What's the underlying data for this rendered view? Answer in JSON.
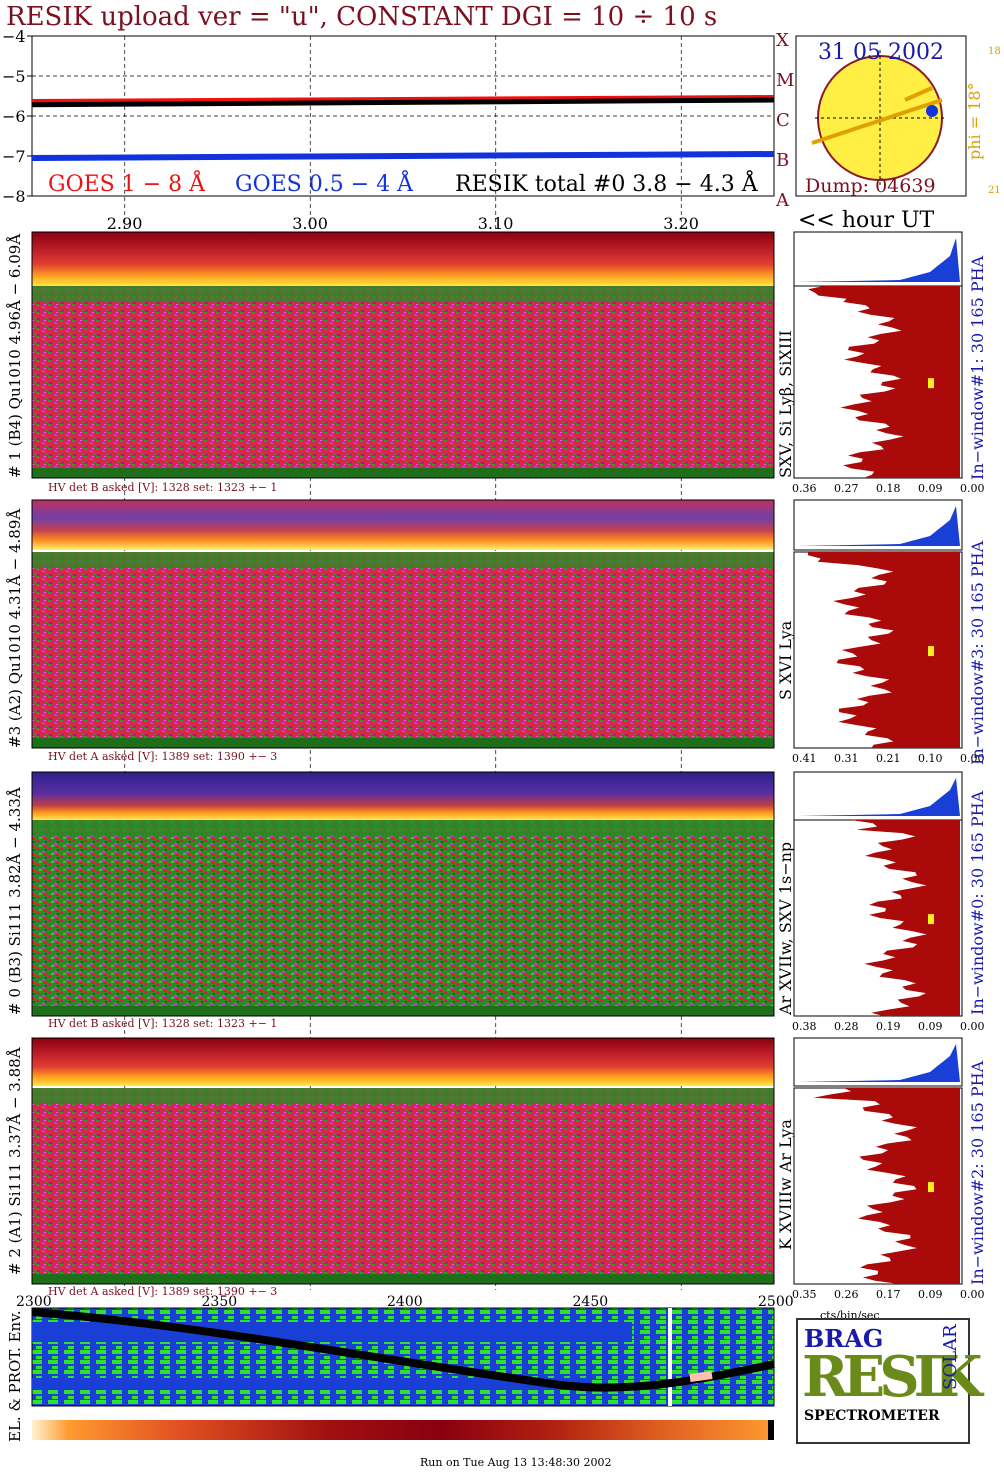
{
  "header": {
    "title": "RESIK upload ver = \"u\", CONSTANT  DGI =  10 ÷  10 s",
    "goes_label_1": "GOES 1 − 8 Å",
    "goes_label_2": "GOES 0.5 − 4 Å",
    "resik_total_label": "RESIK total #0  3.8 − 4.3 Å",
    "class_letters": [
      "A",
      "B",
      "C",
      "M",
      "X"
    ]
  },
  "colors": {
    "title": "#7a1020",
    "goes_long": "#ee1111",
    "goes_short": "#1133dd",
    "resik_total": "#000000",
    "sun": "#ffee44",
    "sun_ring": "#8a1a2a",
    "phi": "#e0a000",
    "histogram": "#aa0a0a",
    "pha": "#1a3fd6",
    "navy": "#1a1aaa"
  },
  "sun_panel": {
    "date": "31 05 2002",
    "dump": "Dump: 04639",
    "phi_label": "phi =  18°",
    "phi_scale": [
      "18",
      "21"
    ]
  },
  "axis": {
    "hour_ticks": [
      "2.90",
      "3.00",
      "3.10",
      "3.20"
    ],
    "hour_label": "<< hour UT",
    "bottom_ticks": [
      "2300",
      "2350",
      "2400",
      "2450",
      "2500"
    ],
    "hist_unit": "cts/bin/sec",
    "run_info": "Run on Tue Aug 13 13:48:30 2002"
  },
  "detectors": [
    {
      "side_label": "# 1 (B4) Qu1010 4.96Å − 6.09Å",
      "line_label": "SXV, Si Lyβ, SiXIII",
      "hv": "HV det B asked [V]:  1328 set:  1323 +−    1",
      "window": "In−window#1:   30 165 PHA",
      "hist_ticks": [
        "0.36",
        "0.27",
        "0.18",
        "0.09",
        "0.00"
      ]
    },
    {
      "side_label": "#3 (A2) Qu1010  4.31Å − 4.89Å",
      "line_label": "S XVI Lya",
      "hv": "HV det A asked [V]:  1389 set:  1390 +−     3",
      "window": "In−window#3:   30 165 PHA",
      "hist_ticks": [
        "0.41",
        "0.31",
        "0.21",
        "0.10",
        "0.00"
      ]
    },
    {
      "side_label": "# 0 (B3) Si111  3.82Å − 4.33Å",
      "line_label": "Ar XVIIw,  SXV 1s−np",
      "hv": "HV det B asked [V]:  1328 set:  1323 +−    1",
      "window": "In−window#0:   30 165 PHA",
      "hist_ticks": [
        "0.38",
        "0.28",
        "0.19",
        "0.09",
        "0.00"
      ]
    },
    {
      "side_label": "# 2 (A1) Si111  3.37Å − 3.88Å",
      "line_label": "K XVIIIw  Ar Lya",
      "hv": "HV det A asked [V]:  1389 set:  1390 +−     3",
      "window": "In−window#2:   30 165 PHA",
      "hist_ticks": [
        "0.35",
        "0.26",
        "0.17",
        "0.09",
        "0.00"
      ]
    }
  ],
  "env_label": "EL. & PROT. Env.",
  "logo": {
    "brag": "BRAG",
    "resik": "RESIK",
    "solar": "SOLAR",
    "spectrometer": "SPECTROMETER"
  },
  "chart_data": [
    {
      "type": "line",
      "title": "RESIK upload ver = \"u\", CONSTANT  DGI =  10 ÷  10 s",
      "ylabel": "",
      "ylim": [
        -8,
        -4
      ],
      "yticks": [
        -4,
        -5,
        -6,
        -7,
        -8
      ],
      "x_ticks": [
        "2.90",
        "3.00",
        "3.10",
        "3.20"
      ],
      "xlim": [
        2.85,
        3.25
      ],
      "grid": true,
      "series": [
        {
          "name": "GOES 1 − 8 Å",
          "x": [
            2.85,
            3.25
          ],
          "y": [
            -5.65,
            -5.55
          ]
        },
        {
          "name": "GOES 0.5 − 4 Å",
          "x": [
            2.85,
            3.25
          ],
          "y": [
            -7.05,
            -6.95
          ]
        },
        {
          "name": "RESIK total #0  3.8 − 4.3 Å",
          "x": [
            2.85,
            3.25
          ],
          "y": [
            -5.72,
            -5.6
          ]
        }
      ]
    },
    {
      "type": "bar",
      "title": "In−window#1:   30 165 PHA",
      "xlabel": "cts/bin/sec",
      "xlim": [
        0.36,
        0.0
      ],
      "x_ticks": [
        "0.36",
        "0.27",
        "0.18",
        "0.09",
        "0.00"
      ]
    },
    {
      "type": "bar",
      "title": "In−window#3:   30 165 PHA",
      "xlabel": "cts/bin/sec",
      "xlim": [
        0.41,
        0.0
      ],
      "x_ticks": [
        "0.41",
        "0.31",
        "0.21",
        "0.10",
        "0.00"
      ]
    },
    {
      "type": "bar",
      "title": "In−window#0:   30 165 PHA",
      "xlabel": "cts/bin/sec",
      "xlim": [
        0.38,
        0.0
      ],
      "x_ticks": [
        "0.38",
        "0.28",
        "0.19",
        "0.09",
        "0.00"
      ]
    },
    {
      "type": "bar",
      "title": "In−window#2:   30 165 PHA",
      "xlabel": "cts/bin/sec",
      "xlim": [
        0.35,
        0.0
      ],
      "x_ticks": [
        "0.35",
        "0.26",
        "0.17",
        "0.09",
        "0.00"
      ]
    },
    {
      "type": "line",
      "title": "EL. & PROT. Env.",
      "xlim": [
        2300,
        2500
      ],
      "x_ticks": [
        "2300",
        "2350",
        "2400",
        "2450",
        "2500"
      ]
    }
  ]
}
